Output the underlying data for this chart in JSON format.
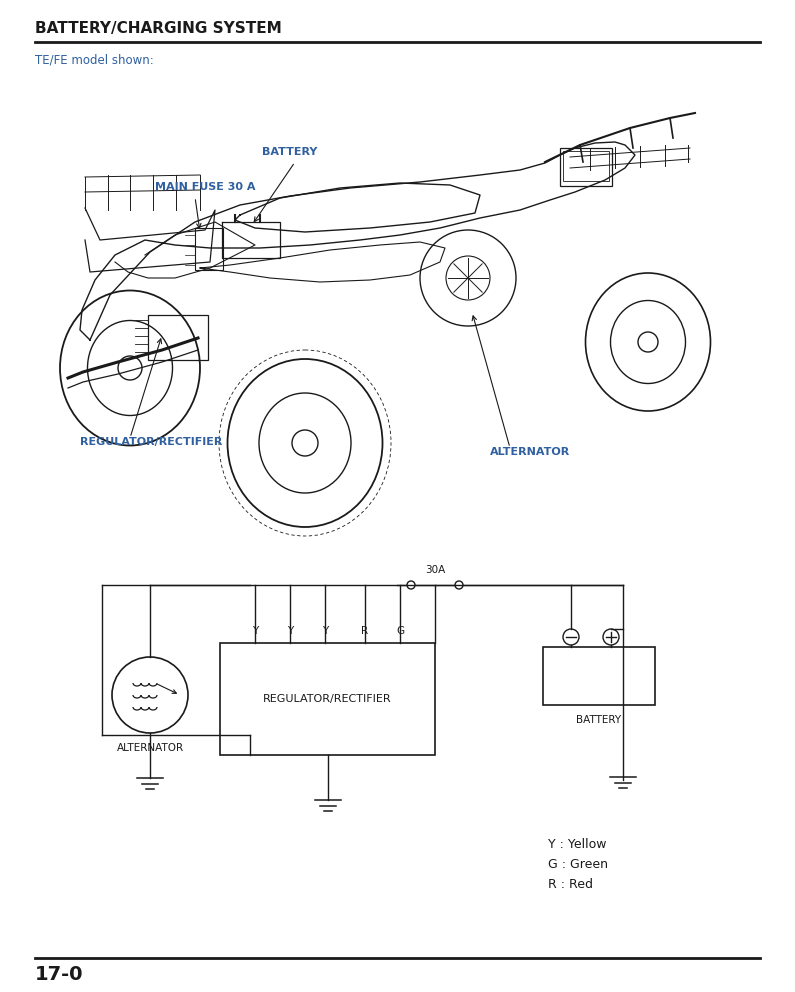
{
  "title": "BATTERY/CHARGING SYSTEM",
  "subtitle": "TE/FE model shown:",
  "title_color": "#1a1a1a",
  "subtitle_color": "#3060a0",
  "label_battery": "BATTERY",
  "label_main_fuse": "MAIN FUSE 30 A",
  "label_regulator_atv": "REGULATOR/RECTIFIER",
  "label_alternator_atv": "ALTERNATOR",
  "label_color": "#3060a0",
  "diagram_title": "30A",
  "diagram_labels": [
    "Y",
    "Y",
    "Y",
    "R",
    "G"
  ],
  "diagram_label_alt": "ALTERNATOR",
  "diagram_label_reg": "REGULATOR/RECTIFIER",
  "diagram_label_bat": "BATTERY",
  "legend_items": [
    "Y : Yellow",
    "G : Green",
    "R : Red"
  ],
  "page_number": "17-0",
  "bg_color": "#ffffff",
  "line_color": "#1a1a1a",
  "text_color": "#1a1a1a"
}
